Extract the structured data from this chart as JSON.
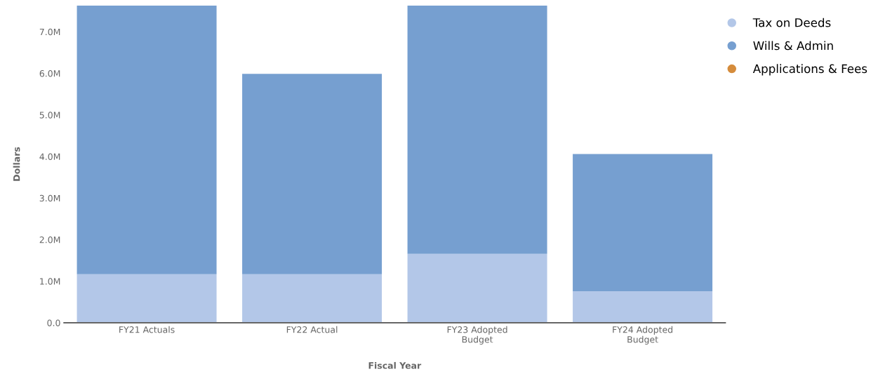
{
  "chart_data": {
    "type": "bar",
    "stacked": true,
    "xlabel": "Fiscal Year",
    "ylabel": "Dollars",
    "categories": [
      "FY21 Actuals",
      "FY22 Actual",
      "FY23 Adopted\nBudget",
      "FY24 Adopted\nBudget"
    ],
    "series": [
      {
        "name": "Tax on Deeds",
        "color": "#b3c7e8",
        "values": [
          1.17,
          1.17,
          1.66,
          0.76
        ]
      },
      {
        "name": "Wills & Admin",
        "color": "#769fd0",
        "values": [
          6.46,
          4.82,
          5.97,
          3.3
        ]
      },
      {
        "name": "Applications & Fees",
        "color": "#d58c3c",
        "values": [
          null,
          null,
          null,
          null
        ]
      }
    ],
    "ylim": [
      0,
      7.63
    ],
    "yticks": [
      {
        "value": 0,
        "label": "0.0"
      },
      {
        "value": 1,
        "label": "1.0M"
      },
      {
        "value": 2,
        "label": "2.0M"
      },
      {
        "value": 3,
        "label": "3.0M"
      },
      {
        "value": 4,
        "label": "4.0M"
      },
      {
        "value": 5,
        "label": "5.0M"
      },
      {
        "value": 6,
        "label": "6.0M"
      },
      {
        "value": 7,
        "label": "7.0M"
      }
    ],
    "grid": false,
    "legend": "top right"
  }
}
